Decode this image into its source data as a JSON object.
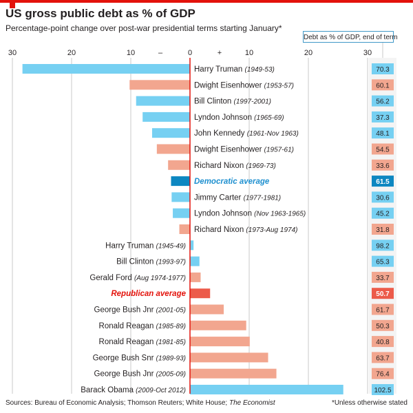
{
  "header": {
    "title": "US gross public debt as % of GDP",
    "subtitle": "Percentage-point change over post-war presidential terms starting January*"
  },
  "right_column_title": "Debt as % of GDP, end of term",
  "footer": {
    "sources_prefix": "Sources: Bureau of Economic Analysis; Thomson Reuters; White House; ",
    "sources_italic": "The Economist",
    "footnote": "*Unless otherwise stated"
  },
  "colors": {
    "democrat": "#76d0f2",
    "republican": "#f2a68f",
    "democrat_avg": "#0d87c1",
    "republican_avg": "#ec5b4a",
    "democrat_avg_text": "#1d8fcf",
    "republican_avg_text": "#e3120b",
    "zero_line": "#e3120b",
    "grid": "#c8c8c8"
  },
  "chart_data": {
    "type": "bar",
    "orientation": "horizontal",
    "xlim": [
      -30,
      30
    ],
    "xticks": [
      {
        "value": -30,
        "label": "30"
      },
      {
        "value": -20,
        "label": "20"
      },
      {
        "value": -10,
        "label": "10"
      },
      {
        "value": 0,
        "label": "0"
      },
      {
        "value": 10,
        "label": "10"
      },
      {
        "value": 20,
        "label": "20"
      },
      {
        "value": 30,
        "label": "30"
      }
    ],
    "sign_labels": [
      {
        "value": -5,
        "label": "–"
      },
      {
        "value": 5,
        "label": "+"
      }
    ],
    "grid": true,
    "rows": [
      {
        "name": "Harry Truman",
        "years": "(1949-53)",
        "change": -28.3,
        "party": "D",
        "debt_end": "70.3"
      },
      {
        "name": "Dwight Eisenhower",
        "years": "(1953-57)",
        "change": -10.2,
        "party": "R",
        "debt_end": "60.1"
      },
      {
        "name": "Bill Clinton",
        "years": "(1997-2001)",
        "change": -9.1,
        "party": "D",
        "debt_end": "56.2"
      },
      {
        "name": "Lyndon Johnson",
        "years": "(1965-69)",
        "change": -8.0,
        "party": "D",
        "debt_end": "37.3"
      },
      {
        "name": "John Kennedy",
        "years": "(1961-Nov 1963)",
        "change": -6.4,
        "party": "D",
        "debt_end": "48.1"
      },
      {
        "name": "Dwight Eisenhower",
        "years": "(1957-61)",
        "change": -5.6,
        "party": "R",
        "debt_end": "54.5"
      },
      {
        "name": "Richard Nixon",
        "years": "(1969-73)",
        "change": -3.7,
        "party": "R",
        "debt_end": "33.6"
      },
      {
        "name": "Democratic average",
        "years": "",
        "change": -3.2,
        "party": "D",
        "average": true,
        "debt_end": "61.5"
      },
      {
        "name": "Jimmy Carter",
        "years": "(1977-1981)",
        "change": -3.1,
        "party": "D",
        "debt_end": "30.6"
      },
      {
        "name": "Lyndon Johnson",
        "years": "(Nov 1963-1965)",
        "change": -2.9,
        "party": "D",
        "debt_end": "45.2"
      },
      {
        "name": "Richard Nixon",
        "years": "(1973-Aug 1974)",
        "change": -1.8,
        "party": "R",
        "debt_end": "31.8"
      },
      {
        "name": "Harry Truman",
        "years": "(1945-49)",
        "change": 0.6,
        "party": "D",
        "debt_end": "98.2"
      },
      {
        "name": "Bill Clinton",
        "years": "(1993-97)",
        "change": 1.6,
        "party": "D",
        "debt_end": "65.3"
      },
      {
        "name": "Gerald Ford",
        "years": "(Aug 1974-1977)",
        "change": 1.8,
        "party": "R",
        "debt_end": "33.7"
      },
      {
        "name": "Republican average",
        "years": "",
        "change": 3.4,
        "party": "R",
        "average": true,
        "debt_end": "50.7"
      },
      {
        "name": "George Bush Jnr",
        "years": "(2001-05)",
        "change": 5.7,
        "party": "R",
        "debt_end": "61.7"
      },
      {
        "name": "Ronald Reagan",
        "years": "(1985-89)",
        "change": 9.5,
        "party": "R",
        "debt_end": "50.3"
      },
      {
        "name": "Ronald Reagan",
        "years": "(1981-85)",
        "change": 10.1,
        "party": "R",
        "debt_end": "40.8"
      },
      {
        "name": "George Bush Snr",
        "years": "(1989-93)",
        "change": 13.2,
        "party": "R",
        "debt_end": "63.7"
      },
      {
        "name": "George Bush Jnr",
        "years": "(2005-09)",
        "change": 14.6,
        "party": "R",
        "debt_end": "76.4"
      },
      {
        "name": "Barack Obama",
        "years": "(2009-Oct 2012)",
        "change": 25.9,
        "party": "D",
        "debt_end": "102.5"
      }
    ]
  }
}
